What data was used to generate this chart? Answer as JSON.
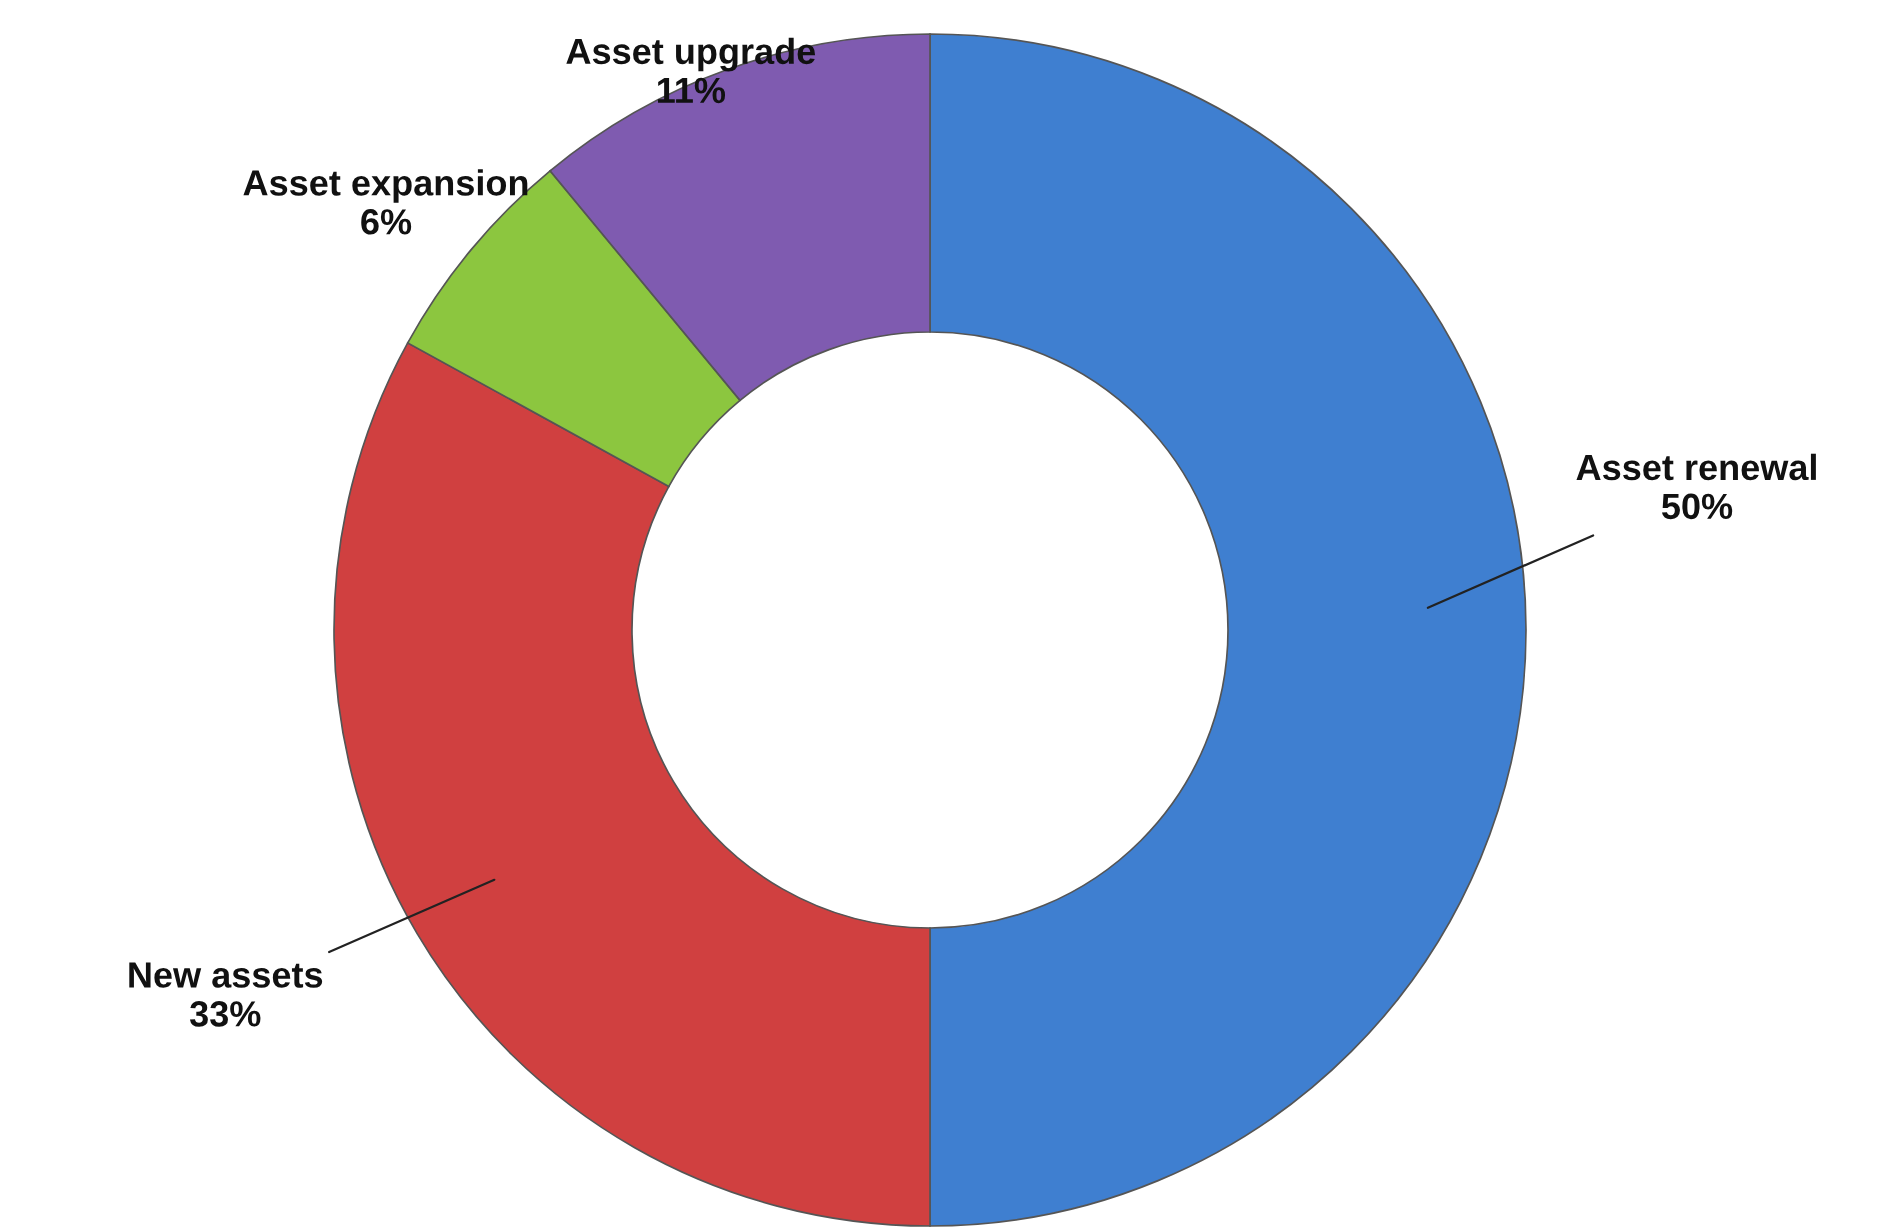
{
  "chart_data": {
    "type": "donut",
    "categories": [
      "Asset renewal",
      "New assets",
      "Asset expansion",
      "Asset upgrade"
    ],
    "values": [
      50,
      33,
      6,
      11
    ],
    "colors": [
      "#3f7fd0",
      "#d04040",
      "#8cc63f",
      "#7f5bb0"
    ],
    "value_labels": [
      "50%",
      "33%",
      "6%",
      "11%"
    ],
    "legend": false
  }
}
